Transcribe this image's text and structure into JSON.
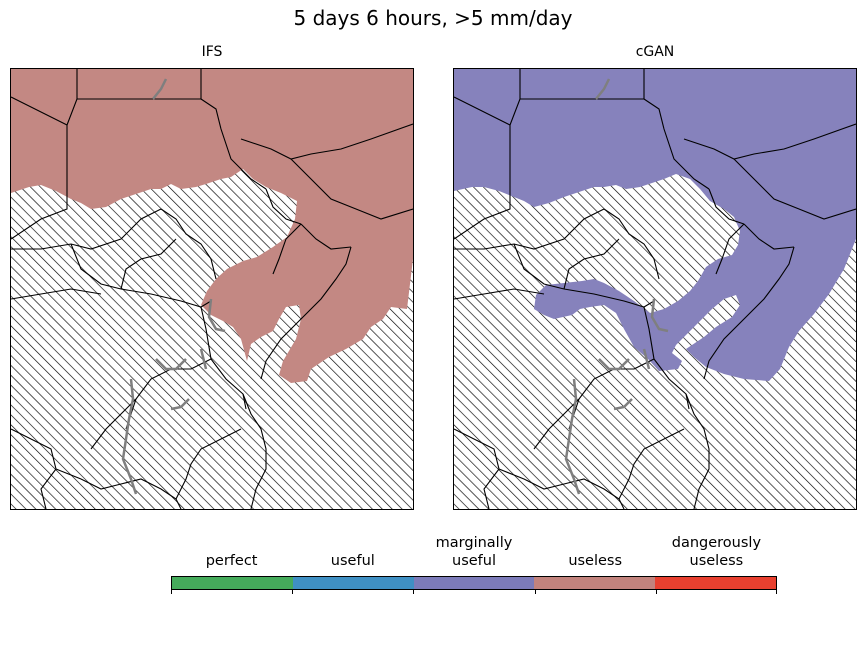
{
  "figure": {
    "title": "5 days 6 hours, >5 mm/day"
  },
  "panels": [
    {
      "title": "IFS",
      "fill_color": "#c38883"
    },
    {
      "title": "cGAN",
      "fill_color": "#8682bc"
    }
  ],
  "colorbar": {
    "categories": [
      {
        "label": "perfect",
        "color": "#45ab5b"
      },
      {
        "label": "useful",
        "color": "#3f90c4"
      },
      {
        "label": "marginally\nuseful",
        "color": "#7c7bb9"
      },
      {
        "label": "useless",
        "color": "#c2837d"
      },
      {
        "label": "dangerously\nuseless",
        "color": "#e8402f"
      }
    ]
  },
  "colors": {
    "hatch": "#000000",
    "border": "#000000",
    "lakes": "#7f7f7f"
  }
}
